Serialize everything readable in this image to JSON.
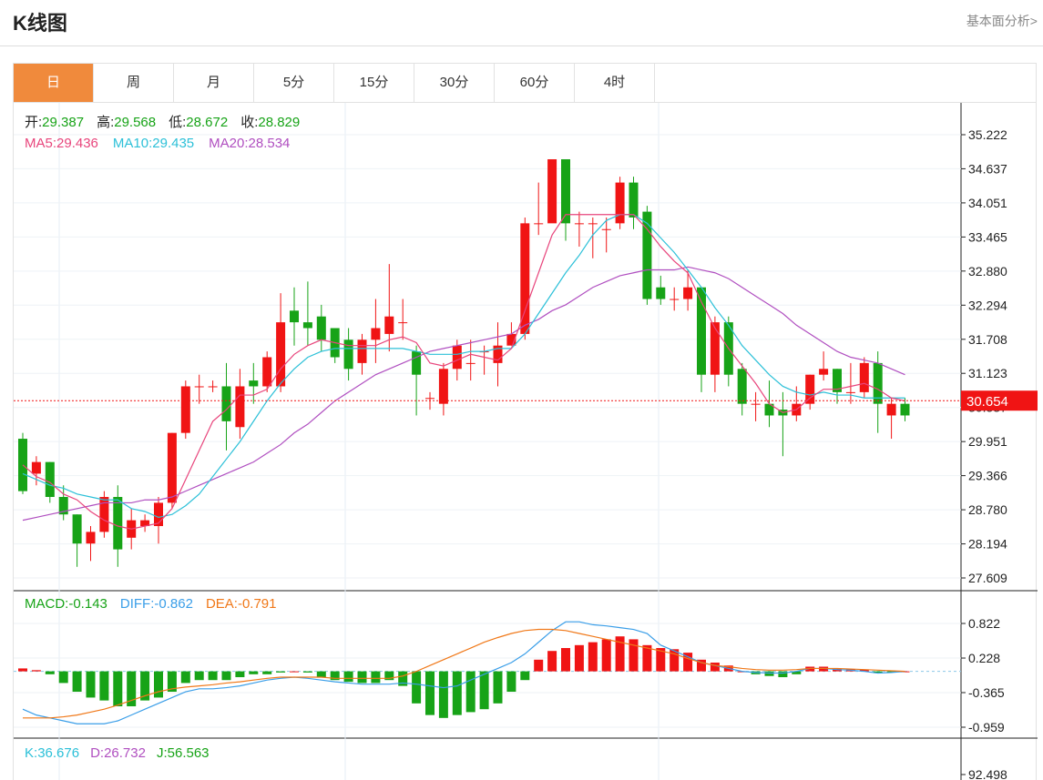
{
  "header": {
    "title": "K线图",
    "fundamental_link": "基本面分析>"
  },
  "tabs": [
    "日",
    "周",
    "月",
    "5分",
    "15分",
    "30分",
    "60分",
    "4时"
  ],
  "active_tab": 0,
  "colors": {
    "up": "#f01414",
    "down": "#17a317",
    "ma5": "#e8457c",
    "ma10": "#2cc0d8",
    "ma20": "#b04fc0",
    "diff": "#3a9ee8",
    "dea": "#f07818",
    "kdj_k": "#2cc0d8",
    "kdj_d": "#b04fc0",
    "kdj_j": "#17a317",
    "accent": "#f08a3c"
  },
  "info": {
    "open_label": "开:",
    "open": "29.387",
    "high_label": "高:",
    "high": "29.568",
    "low_label": "低:",
    "low": "28.672",
    "close_label": "收:",
    "close": "28.829",
    "ma5_label": "MA5:",
    "ma5": "29.436",
    "ma10_label": "MA10:",
    "ma10": "29.435",
    "ma20_label": "MA20:",
    "ma20": "28.534"
  },
  "macd_info": {
    "macd_label": "MACD:",
    "macd": "-0.143",
    "diff_label": "DIFF:",
    "diff": "-0.862",
    "dea_label": "DEA:",
    "dea": "-0.791"
  },
  "kdj_info": {
    "k_label": "K:",
    "k": "36.676",
    "d_label": "D:",
    "d": "26.732",
    "j_label": "J:",
    "j": "56.563"
  },
  "last_price": "30.654",
  "chart_data": [
    {
      "type": "candlestick",
      "y_ticks": [
        "35.222",
        "34.637",
        "34.051",
        "33.465",
        "32.880",
        "32.294",
        "31.708",
        "31.123",
        "30.537",
        "29.951",
        "29.366",
        "28.780",
        "28.194",
        "27.609"
      ],
      "ylim": [
        27.609,
        35.222
      ],
      "candles": [
        [
          30.0,
          29.1,
          30.1,
          29.05
        ],
        [
          29.4,
          29.6,
          29.7,
          29.2
        ],
        [
          29.6,
          29.0,
          29.6,
          28.9
        ],
        [
          29.0,
          28.7,
          29.2,
          28.6
        ],
        [
          28.7,
          28.2,
          28.7,
          27.8
        ],
        [
          28.2,
          28.4,
          28.5,
          27.9
        ],
        [
          28.4,
          29.0,
          29.1,
          28.3
        ],
        [
          29.0,
          28.1,
          29.2,
          27.8
        ],
        [
          28.3,
          28.6,
          28.8,
          28.1
        ],
        [
          28.5,
          28.6,
          28.7,
          28.4
        ],
        [
          28.5,
          28.9,
          29.0,
          28.2
        ],
        [
          28.9,
          30.1,
          30.1,
          28.8
        ],
        [
          30.1,
          30.9,
          31.0,
          30.0
        ],
        [
          30.9,
          30.9,
          31.1,
          30.6
        ],
        [
          30.9,
          30.9,
          31.0,
          30.8
        ],
        [
          30.9,
          30.3,
          31.3,
          29.8
        ],
        [
          30.2,
          30.9,
          31.2,
          30.0
        ],
        [
          31.0,
          30.9,
          31.3,
          30.6
        ],
        [
          30.9,
          31.4,
          31.5,
          30.8
        ],
        [
          30.9,
          32.0,
          32.5,
          30.8
        ],
        [
          32.2,
          32.0,
          32.6,
          31.6
        ],
        [
          32.0,
          31.9,
          32.7,
          31.6
        ],
        [
          32.1,
          31.7,
          32.3,
          31.5
        ],
        [
          31.9,
          31.4,
          31.6,
          31.3
        ],
        [
          31.7,
          31.2,
          31.9,
          31.0
        ],
        [
          31.3,
          31.7,
          31.8,
          31.1
        ],
        [
          31.7,
          31.9,
          32.4,
          31.3
        ],
        [
          31.8,
          32.1,
          33.0,
          31.5
        ],
        [
          32.0,
          32.0,
          32.4,
          31.7
        ],
        [
          31.5,
          31.1,
          31.6,
          30.4
        ],
        [
          30.7,
          30.7,
          30.8,
          30.5
        ],
        [
          30.6,
          31.2,
          31.3,
          30.4
        ],
        [
          31.2,
          31.6,
          31.7,
          31.0
        ],
        [
          31.3,
          31.3,
          31.7,
          31.0
        ],
        [
          31.5,
          31.5,
          31.6,
          31.1
        ],
        [
          31.3,
          31.6,
          32.0,
          30.9
        ],
        [
          31.6,
          31.8,
          32.0,
          31.6
        ],
        [
          31.8,
          33.7,
          33.8,
          31.7
        ],
        [
          33.7,
          33.7,
          34.4,
          33.5
        ],
        [
          33.7,
          34.8,
          34.8,
          33.8
        ],
        [
          34.8,
          33.7,
          34.8,
          33.4
        ],
        [
          33.7,
          33.7,
          33.9,
          33.3
        ],
        [
          33.7,
          33.7,
          33.8,
          33.1
        ],
        [
          33.6,
          33.6,
          33.8,
          33.2
        ],
        [
          33.7,
          34.4,
          34.5,
          33.6
        ],
        [
          34.4,
          33.8,
          34.5,
          33.6
        ],
        [
          33.9,
          32.4,
          34.0,
          32.3
        ],
        [
          32.6,
          32.4,
          32.8,
          32.3
        ],
        [
          32.4,
          32.4,
          32.6,
          32.2
        ],
        [
          32.4,
          32.6,
          32.9,
          32.2
        ],
        [
          32.6,
          31.1,
          32.6,
          30.8
        ],
        [
          31.1,
          32.0,
          32.1,
          30.8
        ],
        [
          32.0,
          31.1,
          32.1,
          30.9
        ],
        [
          31.2,
          30.6,
          31.3,
          30.4
        ],
        [
          30.6,
          30.6,
          30.8,
          30.3
        ],
        [
          30.6,
          30.4,
          31.0,
          30.2
        ],
        [
          30.5,
          30.4,
          30.8,
          29.7
        ],
        [
          30.4,
          30.6,
          30.9,
          30.3
        ],
        [
          30.6,
          31.1,
          31.1,
          30.5
        ],
        [
          31.1,
          31.2,
          31.5,
          31.0
        ],
        [
          31.2,
          30.8,
          31.2,
          30.6
        ],
        [
          30.8,
          30.8,
          31.3,
          30.6
        ],
        [
          30.8,
          31.3,
          31.4,
          30.7
        ],
        [
          31.3,
          30.6,
          31.5,
          30.1
        ],
        [
          30.4,
          30.6,
          30.7,
          30.0
        ],
        [
          30.6,
          30.4,
          30.7,
          30.3
        ]
      ],
      "ma5": [
        29.55,
        29.35,
        29.25,
        29.05,
        28.95,
        28.75,
        28.6,
        28.5,
        28.45,
        28.5,
        28.55,
        28.8,
        29.3,
        29.8,
        30.3,
        30.5,
        30.75,
        30.75,
        30.85,
        31.2,
        31.45,
        31.6,
        31.7,
        31.65,
        31.6,
        31.6,
        31.6,
        31.7,
        31.75,
        31.65,
        31.3,
        31.25,
        31.35,
        31.45,
        31.4,
        31.35,
        31.55,
        32.2,
        32.85,
        33.5,
        33.85,
        33.85,
        33.85,
        33.85,
        33.85,
        33.85,
        33.6,
        33.3,
        33.05,
        32.85,
        32.35,
        31.9,
        31.55,
        31.25,
        30.95,
        30.6,
        30.45,
        30.5,
        30.7,
        30.85,
        30.85,
        30.9,
        30.95,
        30.85,
        30.7,
        30.65
      ],
      "ma10": [
        29.4,
        29.3,
        29.2,
        29.15,
        29.05,
        29.0,
        28.95,
        28.95,
        28.8,
        28.75,
        28.65,
        28.7,
        28.85,
        29.05,
        29.35,
        29.65,
        29.95,
        30.3,
        30.65,
        30.95,
        31.2,
        31.4,
        31.5,
        31.55,
        31.55,
        31.55,
        31.55,
        31.55,
        31.55,
        31.5,
        31.45,
        31.45,
        31.45,
        31.5,
        31.5,
        31.55,
        31.55,
        31.8,
        32.15,
        32.5,
        32.85,
        33.15,
        33.5,
        33.75,
        33.85,
        33.85,
        33.7,
        33.45,
        33.2,
        32.9,
        32.6,
        32.25,
        31.95,
        31.6,
        31.35,
        31.1,
        30.9,
        30.8,
        30.75,
        30.8,
        30.75,
        30.75,
        30.7,
        30.7,
        30.7,
        30.7
      ],
      "ma20": [
        28.6,
        28.65,
        28.7,
        28.75,
        28.8,
        28.85,
        28.9,
        28.9,
        28.9,
        28.95,
        28.95,
        29.0,
        29.1,
        29.2,
        29.3,
        29.4,
        29.5,
        29.6,
        29.75,
        29.9,
        30.1,
        30.25,
        30.45,
        30.65,
        30.8,
        30.95,
        31.1,
        31.2,
        31.3,
        31.4,
        31.5,
        31.55,
        31.6,
        31.65,
        31.7,
        31.75,
        31.8,
        31.95,
        32.05,
        32.2,
        32.3,
        32.45,
        32.6,
        32.7,
        32.8,
        32.85,
        32.9,
        32.9,
        32.9,
        32.95,
        32.9,
        32.85,
        32.75,
        32.6,
        32.45,
        32.3,
        32.15,
        31.95,
        31.8,
        31.65,
        31.5,
        31.4,
        31.35,
        31.3,
        31.2,
        31.1
      ]
    },
    {
      "type": "bar",
      "name": "MACD",
      "y_ticks": [
        "0.822",
        "0.228",
        "-0.365",
        "-0.959"
      ],
      "ylim": [
        -0.959,
        0.822
      ],
      "macd": [
        0.05,
        0.02,
        -0.05,
        -0.2,
        -0.35,
        -0.45,
        -0.5,
        -0.6,
        -0.6,
        -0.5,
        -0.45,
        -0.35,
        -0.2,
        -0.15,
        -0.15,
        -0.15,
        -0.1,
        -0.05,
        -0.05,
        -0.02,
        0.0,
        -0.02,
        -0.1,
        -0.15,
        -0.18,
        -0.2,
        -0.2,
        -0.15,
        -0.25,
        -0.55,
        -0.75,
        -0.8,
        -0.75,
        -0.7,
        -0.65,
        -0.55,
        -0.35,
        -0.15,
        0.2,
        0.35,
        0.4,
        0.45,
        0.5,
        0.55,
        0.6,
        0.55,
        0.45,
        0.4,
        0.38,
        0.32,
        0.2,
        0.15,
        0.1,
        0.0,
        -0.05,
        -0.08,
        -0.1,
        -0.05,
        0.08,
        0.08,
        0.05,
        0.04,
        0.03,
        -0.03,
        -0.02,
        0.0
      ],
      "diff": [
        -0.65,
        -0.75,
        -0.8,
        -0.85,
        -0.9,
        -0.9,
        -0.9,
        -0.85,
        -0.75,
        -0.65,
        -0.55,
        -0.45,
        -0.35,
        -0.3,
        -0.3,
        -0.28,
        -0.25,
        -0.2,
        -0.15,
        -0.12,
        -0.1,
        -0.12,
        -0.15,
        -0.18,
        -0.2,
        -0.22,
        -0.22,
        -0.22,
        -0.2,
        -0.22,
        -0.25,
        -0.28,
        -0.25,
        -0.15,
        -0.05,
        0.05,
        0.15,
        0.3,
        0.5,
        0.7,
        0.85,
        0.85,
        0.8,
        0.78,
        0.75,
        0.72,
        0.65,
        0.45,
        0.35,
        0.25,
        0.15,
        0.1,
        0.05,
        0.0,
        -0.02,
        -0.03,
        -0.03,
        0.0,
        0.05,
        0.05,
        0.03,
        0.02,
        0.0,
        -0.03,
        -0.02,
        0.0
      ],
      "dea": [
        -0.8,
        -0.8,
        -0.8,
        -0.78,
        -0.75,
        -0.7,
        -0.65,
        -0.58,
        -0.5,
        -0.42,
        -0.35,
        -0.3,
        -0.27,
        -0.25,
        -0.23,
        -0.2,
        -0.18,
        -0.15,
        -0.12,
        -0.1,
        -0.1,
        -0.1,
        -0.1,
        -0.12,
        -0.12,
        -0.12,
        -0.12,
        -0.12,
        -0.08,
        0.0,
        0.1,
        0.2,
        0.3,
        0.4,
        0.5,
        0.58,
        0.65,
        0.7,
        0.72,
        0.72,
        0.7,
        0.65,
        0.6,
        0.55,
        0.5,
        0.45,
        0.4,
        0.35,
        0.3,
        0.22,
        0.15,
        0.1,
        0.08,
        0.05,
        0.03,
        0.02,
        0.02,
        0.03,
        0.05,
        0.05,
        0.05,
        0.04,
        0.03,
        0.02,
        0.01,
        0.0
      ]
    },
    {
      "type": "line",
      "name": "KDJ",
      "y_ticks": [
        "92.498"
      ]
    }
  ]
}
